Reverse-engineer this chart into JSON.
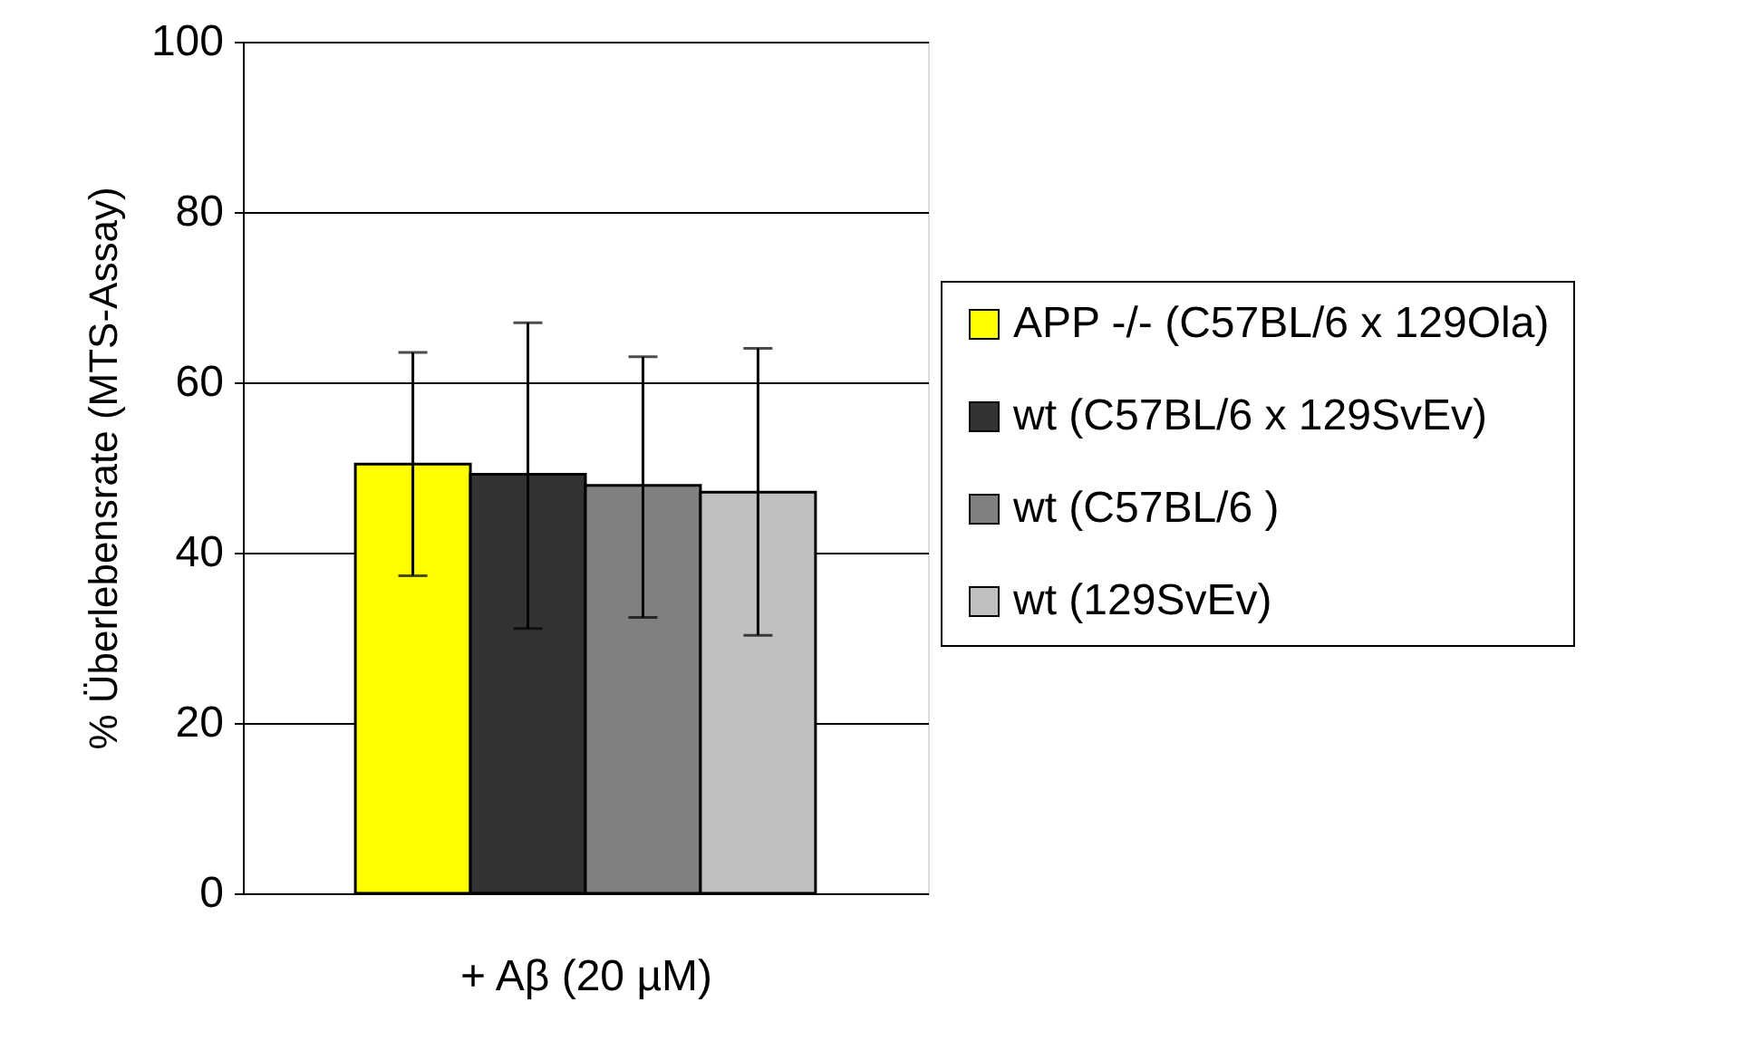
{
  "chart_data": {
    "type": "bar",
    "xlabel": "+ Aβ (20 µM)",
    "ylabel": "% Überlebensrate (MTS-Assay)",
    "categories": [
      null
    ],
    "series": [
      {
        "name": "APP -/- (C57BL/6 x 129Ola)",
        "color": "#ffff00",
        "values": [
          50.4
        ],
        "errors": [
          [
            37.3,
            63.5
          ]
        ]
      },
      {
        "name": "wt (C57BL/6 x 129SvEv)",
        "color": "#333333",
        "values": [
          49.2
        ],
        "errors": [
          [
            31.1,
            67.0
          ]
        ]
      },
      {
        "name": "wt (C57BL/6 )",
        "color": "#808080",
        "values": [
          47.9
        ],
        "errors": [
          [
            32.4,
            63.0
          ]
        ]
      },
      {
        "name": "wt (129SvEv)",
        "color": "#c0c0c0",
        "values": [
          47.1
        ],
        "errors": [
          [
            30.3,
            64.0
          ]
        ]
      }
    ],
    "ylim": [
      0,
      100
    ],
    "yticks": [
      0,
      20,
      40,
      60,
      80,
      100
    ],
    "grid": "y",
    "legend": "right"
  }
}
